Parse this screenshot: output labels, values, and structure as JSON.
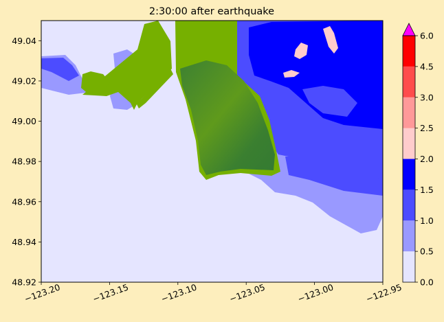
{
  "title": "2:30:00 after earthquake",
  "colors": {
    "figure_bg": "#fdeebd",
    "land_light": "#76b000",
    "land_dark": "#3a7f30",
    "colormap_over": "#ff00ff"
  },
  "chart_data": {
    "type": "heatmap",
    "title": "2:30:00 after earthquake",
    "xlim": [
      -123.2,
      -122.95
    ],
    "ylim": [
      48.92,
      49.05
    ],
    "x_ticks": [
      -123.2,
      -123.15,
      -123.1,
      -123.05,
      -123.0,
      -122.95
    ],
    "x_tick_labels": [
      "−123.20",
      "−123.15",
      "−123.10",
      "−123.05",
      "−123.00",
      "−122.95"
    ],
    "y_ticks": [
      48.92,
      48.94,
      48.96,
      48.98,
      49.0,
      49.02,
      49.04
    ],
    "y_tick_labels": [
      "48.92",
      "48.94",
      "48.96",
      "48.98",
      "49.00",
      "49.02",
      "49.04"
    ],
    "colorbar": {
      "extend": "max",
      "levels": [
        0.0,
        0.5,
        1.0,
        1.5,
        2.0,
        2.5,
        3.0,
        4.5,
        6.0
      ],
      "tick_labels": [
        "0.0",
        "0.5",
        "1.0",
        "1.5",
        "2.0",
        "2.5",
        "3.0",
        "4.5",
        "6.0"
      ],
      "colors": [
        "#e5e5ff",
        "#9999ff",
        "#4c4cff",
        "#0000ff",
        "#ffcccc",
        "#ff9999",
        "#ff4c4c",
        "#ff0000"
      ],
      "over_color": "#ff00ff"
    }
  }
}
